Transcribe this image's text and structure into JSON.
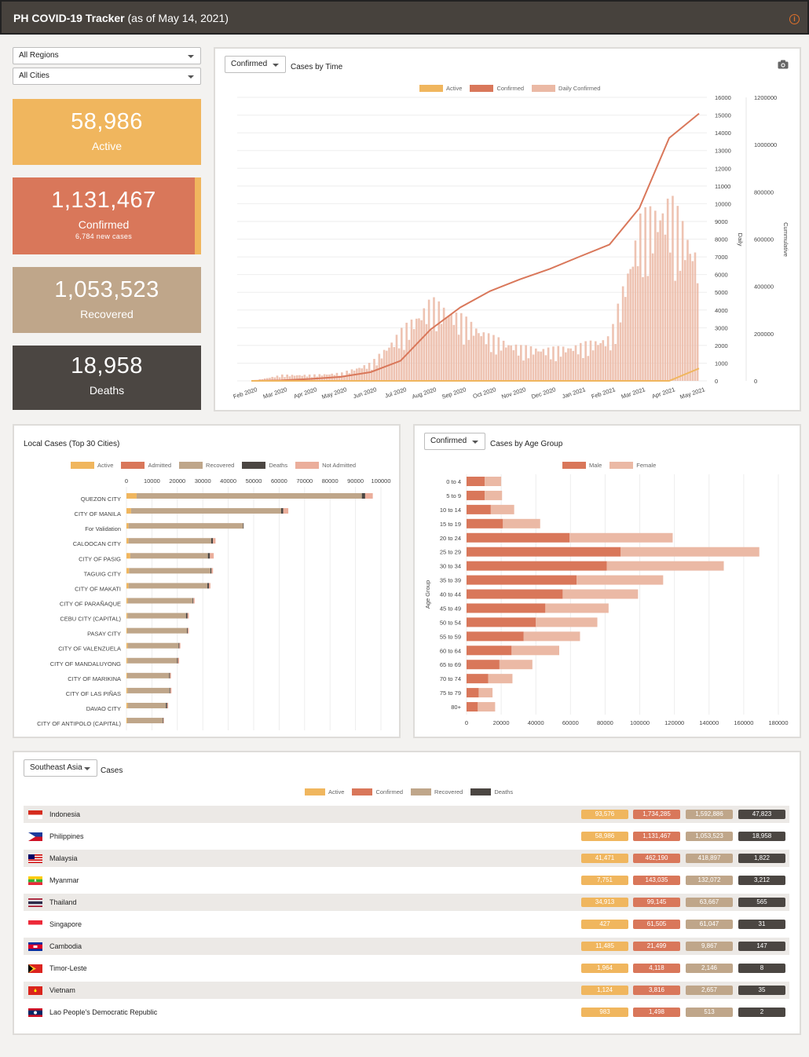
{
  "header": {
    "title_bold": "PH COVID-19 Tracker",
    "title_rest": " (as of May 14, 2021)",
    "info_icon": "i"
  },
  "filters": {
    "region": "All Regions",
    "city": "All Cities"
  },
  "colors": {
    "active": "#f0b65e",
    "confirmed": "#d9775a",
    "recovered": "#bfa68a",
    "deaths": "#4b4642",
    "daily": "#ebb9a5",
    "not_admitted": "#ebae9b"
  },
  "stats": {
    "active": {
      "value": "58,986",
      "label": "Active"
    },
    "confirmed": {
      "value": "1,131,467",
      "label": "Confirmed",
      "sub": "6,784 new cases"
    },
    "recovered": {
      "value": "1,053,523",
      "label": "Recovered"
    },
    "deaths": {
      "value": "18,958",
      "label": "Deaths"
    }
  },
  "time_chart": {
    "dropdown": "Confirmed",
    "title": "Cases by Time",
    "legend": [
      "Active",
      "Confirmed",
      "Daily Confirmed"
    ],
    "y_left_label": "Daily",
    "y_right_label": "Cummulative",
    "y_left_ticks": [
      "16000",
      "15000",
      "14000",
      "13000",
      "12000",
      "11000",
      "10000",
      "9000",
      "8000",
      "7000",
      "6000",
      "5000",
      "4000",
      "3000",
      "2000",
      "1000",
      "0"
    ],
    "y_right_ticks": [
      "1200000",
      "1000000",
      "800000",
      "600000",
      "400000",
      "200000",
      "0"
    ],
    "x_ticks": [
      "Feb 2020",
      "Mar 2020",
      "Apr 2020",
      "May 2020",
      "Jun 2020",
      "Jul 2020",
      "Aug 2020",
      "Sep 2020",
      "Oct 2020",
      "Nov 2020",
      "Dec 2020",
      "Jan 2021",
      "Feb 2021",
      "Mar 2021",
      "Apr 2021",
      "May 2021"
    ]
  },
  "cities_chart": {
    "title": "Local Cases (Top 30 Cities)",
    "legend": [
      "Active",
      "Admitted",
      "Recovered",
      "Deaths",
      "Not Admitted"
    ],
    "x_ticks": [
      "0",
      "10000",
      "20000",
      "30000",
      "40000",
      "50000",
      "60000",
      "70000",
      "80000",
      "90000",
      "100000"
    ]
  },
  "age_chart": {
    "dropdown": "Confirmed",
    "title": "Cases by Age Group",
    "legend": [
      "Male",
      "Female"
    ],
    "y_label": "Age Group",
    "x_ticks": [
      "0",
      "20000",
      "40000",
      "60000",
      "80000",
      "100000",
      "120000",
      "140000",
      "160000",
      "180000"
    ]
  },
  "sea": {
    "dropdown": "Southeast Asia",
    "title": "Cases",
    "legend": [
      "Active",
      "Confirmed",
      "Recovered",
      "Deaths"
    ],
    "rows": [
      {
        "name": "Indonesia",
        "flag": "id",
        "active": "93,576",
        "confirmed": "1,734,285",
        "recovered": "1,592,886",
        "deaths": "47,823"
      },
      {
        "name": "Philippines",
        "flag": "ph",
        "active": "58,986",
        "confirmed": "1,131,467",
        "recovered": "1,053,523",
        "deaths": "18,958"
      },
      {
        "name": "Malaysia",
        "flag": "my",
        "active": "41,471",
        "confirmed": "462,190",
        "recovered": "418,897",
        "deaths": "1,822"
      },
      {
        "name": "Myanmar",
        "flag": "mm",
        "active": "7,751",
        "confirmed": "143,035",
        "recovered": "132,072",
        "deaths": "3,212"
      },
      {
        "name": "Thailand",
        "flag": "th",
        "active": "34,913",
        "confirmed": "99,145",
        "recovered": "63,667",
        "deaths": "565"
      },
      {
        "name": "Singapore",
        "flag": "sg",
        "active": "427",
        "confirmed": "61,505",
        "recovered": "61,047",
        "deaths": "31"
      },
      {
        "name": "Cambodia",
        "flag": "kh",
        "active": "11,485",
        "confirmed": "21,499",
        "recovered": "9,867",
        "deaths": "147"
      },
      {
        "name": "Timor-Leste",
        "flag": "tl",
        "active": "1,964",
        "confirmed": "4,118",
        "recovered": "2,146",
        "deaths": "8"
      },
      {
        "name": "Vietnam",
        "flag": "vn",
        "active": "1,124",
        "confirmed": "3,816",
        "recovered": "2,657",
        "deaths": "35"
      },
      {
        "name": "Lao People's Democratic Republic",
        "flag": "la",
        "active": "983",
        "confirmed": "1,498",
        "recovered": "513",
        "deaths": "2"
      }
    ]
  },
  "chart_data": [
    {
      "type": "bar",
      "title": "Local Cases (Top 30 Cities)",
      "orientation": "horizontal",
      "stacked": true,
      "xlim": [
        0,
        100000
      ],
      "categories": [
        "QUEZON CITY",
        "CITY OF MANILA",
        "For Validation",
        "CALOOCAN CITY",
        "CITY OF PASIG",
        "TAGUIG CITY",
        "CITY OF MAKATI",
        "CITY OF PARAÑAQUE",
        "CEBU CITY (CAPITAL)",
        "PASAY CITY",
        "CITY OF VALENZUELA",
        "CITY OF MANDALUYONG",
        "CITY OF MARIKINA",
        "CITY OF LAS PIÑAS",
        "DAVAO CITY",
        "CITY OF ANTIPOLO (CAPITAL)"
      ],
      "series": [
        {
          "name": "Active",
          "values": [
            4000,
            1800,
            800,
            800,
            1500,
            1000,
            800,
            500,
            400,
            300,
            500,
            400,
            300,
            400,
            500,
            300
          ]
        },
        {
          "name": "Admitted",
          "values": [
            0,
            0,
            0,
            0,
            0,
            0,
            0,
            0,
            0,
            0,
            0,
            0,
            0,
            0,
            0,
            0
          ]
        },
        {
          "name": "Recovered",
          "values": [
            88500,
            59000,
            45000,
            32500,
            30500,
            32000,
            31000,
            25500,
            23000,
            23500,
            20000,
            19500,
            16500,
            16500,
            15000,
            14000
          ]
        },
        {
          "name": "Deaths",
          "values": [
            1300,
            800,
            200,
            700,
            800,
            400,
            600,
            300,
            600,
            300,
            300,
            300,
            300,
            300,
            500,
            200
          ]
        },
        {
          "name": "Not Admitted",
          "values": [
            3000,
            2000,
            0,
            1000,
            1500,
            600,
            600,
            500,
            500,
            400,
            400,
            500,
            400,
            500,
            400,
            200
          ]
        }
      ]
    },
    {
      "type": "bar",
      "title": "Cases by Age Group",
      "orientation": "horizontal",
      "stacked": true,
      "xlim": [
        0,
        180000
      ],
      "categories": [
        "0 to 4",
        "5 to 9",
        "10 to 14",
        "15 to 19",
        "20 to 24",
        "25 to 29",
        "30 to 34",
        "35 to 39",
        "40 to 44",
        "45 to 49",
        "50 to 54",
        "55 to 59",
        "60 to 64",
        "65 to 69",
        "70 to 74",
        "75 to 79",
        "80+"
      ],
      "series": [
        {
          "name": "Male",
          "values": [
            10500,
            10500,
            14000,
            21000,
            59500,
            89000,
            81000,
            63500,
            55500,
            45500,
            40000,
            33000,
            26000,
            19000,
            12500,
            7000,
            6500
          ]
        },
        {
          "name": "Female",
          "values": [
            9500,
            10000,
            13500,
            21500,
            59500,
            80000,
            67500,
            50000,
            43500,
            36500,
            35500,
            32500,
            27500,
            19000,
            14000,
            8000,
            10000
          ]
        }
      ]
    },
    {
      "type": "line",
      "title": "Cases by Time",
      "x": [
        "Feb 2020",
        "Mar 2020",
        "Apr 2020",
        "May 2020",
        "Jun 2020",
        "Jul 2020",
        "Aug 2020",
        "Sep 2020",
        "Oct 2020",
        "Nov 2020",
        "Dec 2020",
        "Jan 2021",
        "Feb 2021",
        "Mar 2021",
        "Apr 2021",
        "May 2021"
      ],
      "y_left_range": [
        0,
        16000
      ],
      "y_right_range": [
        0,
        1200000
      ],
      "series": [
        {
          "name": "Confirmed",
          "axis": "right",
          "values": [
            3,
            2000,
            8500,
            17000,
            37000,
            85000,
            217000,
            311000,
            380000,
            430000,
            474000,
            526000,
            577000,
            731000,
            1028000,
            1131467
          ]
        },
        {
          "name": "Daily Confirmed",
          "axis": "left",
          "values": [
            0,
            300,
            300,
            400,
            900,
            2500,
            4000,
            3200,
            2200,
            1700,
            1600,
            1800,
            2200,
            8000,
            9000,
            6000
          ]
        },
        {
          "name": "Active",
          "axis": "left",
          "values": [
            0,
            0,
            0,
            0,
            0,
            0,
            0,
            0,
            0,
            0,
            0,
            0,
            0,
            0,
            0,
            700
          ]
        }
      ]
    }
  ]
}
